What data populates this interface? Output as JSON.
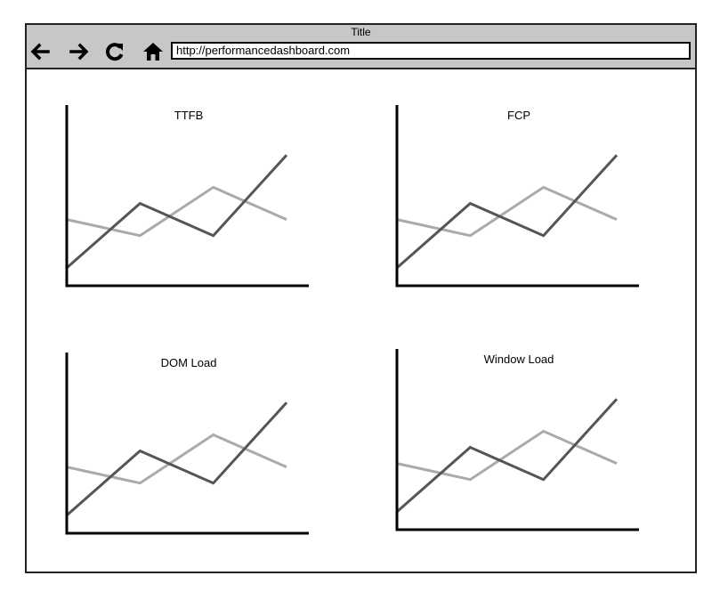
{
  "window": {
    "title": "Title"
  },
  "toolbar": {
    "back_icon": "arrow-left-icon",
    "forward_icon": "arrow-right-icon",
    "reload_icon": "reload-icon",
    "home_icon": "home-icon",
    "url": "http://performancedashboard.com"
  },
  "colors": {
    "titlebar": "#c7c7c7",
    "series_dark": "#555555",
    "series_light": "#aaaaaa",
    "axis": "#000000"
  },
  "chart_data": [
    {
      "type": "line",
      "title": "TTFB",
      "x": [
        0,
        1,
        2,
        3
      ],
      "xlim": [
        0,
        3
      ],
      "ylim": [
        0,
        10
      ],
      "series": [
        {
          "values": [
            1,
            5,
            3,
            8
          ],
          "color": "#555555"
        },
        {
          "values": [
            4,
            3,
            6,
            4
          ],
          "color": "#aaaaaa"
        }
      ],
      "grid": false
    },
    {
      "type": "line",
      "title": "FCP",
      "x": [
        0,
        1,
        2,
        3
      ],
      "xlim": [
        0,
        3
      ],
      "ylim": [
        0,
        10
      ],
      "series": [
        {
          "values": [
            1,
            5,
            3,
            8
          ],
          "color": "#555555"
        },
        {
          "values": [
            4,
            3,
            6,
            4
          ],
          "color": "#aaaaaa"
        }
      ],
      "grid": false
    },
    {
      "type": "line",
      "title": "DOM Load",
      "x": [
        0,
        1,
        2,
        3
      ],
      "xlim": [
        0,
        3
      ],
      "ylim": [
        0,
        10
      ],
      "series": [
        {
          "values": [
            1,
            5,
            3,
            8
          ],
          "color": "#555555"
        },
        {
          "values": [
            4,
            3,
            6,
            4
          ],
          "color": "#aaaaaa"
        }
      ],
      "grid": false
    },
    {
      "type": "line",
      "title": "Window Load",
      "x": [
        0,
        1,
        2,
        3
      ],
      "xlim": [
        0,
        3
      ],
      "ylim": [
        0,
        10
      ],
      "series": [
        {
          "values": [
            1,
            5,
            3,
            8
          ],
          "color": "#555555"
        },
        {
          "values": [
            4,
            3,
            6,
            4
          ],
          "color": "#aaaaaa"
        }
      ],
      "grid": false
    }
  ]
}
